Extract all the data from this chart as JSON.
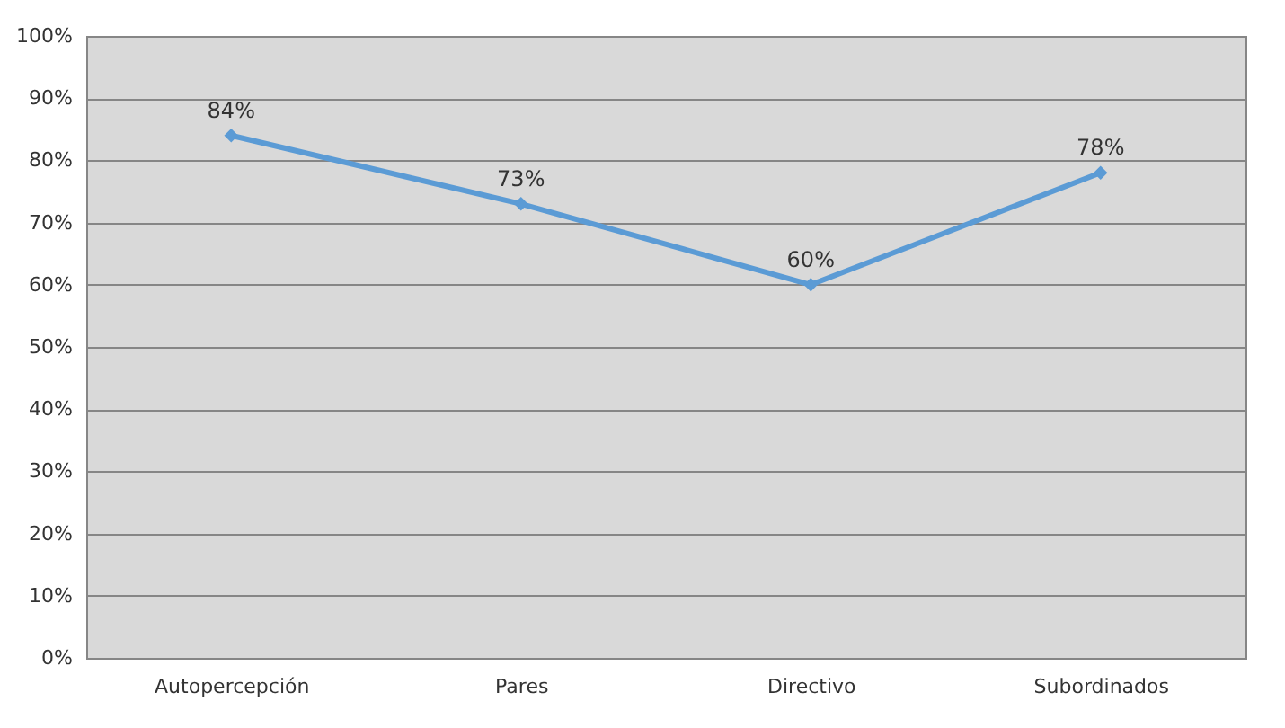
{
  "chart_data": {
    "type": "line",
    "categories": [
      "Autopercepción",
      "Pares",
      "Directivo",
      "Subordinados"
    ],
    "series": [
      {
        "color": "#5b9bd5",
        "values": [
          84,
          73,
          60,
          78
        ],
        "value_labels": [
          "84%",
          "73%",
          "60%",
          "78%"
        ]
      }
    ],
    "ylim": [
      0,
      100
    ],
    "yticks": [
      {
        "value": 0,
        "label": "0%"
      },
      {
        "value": 10,
        "label": "10%"
      },
      {
        "value": 20,
        "label": "20%"
      },
      {
        "value": 30,
        "label": "30%"
      },
      {
        "value": 40,
        "label": "40%"
      },
      {
        "value": 50,
        "label": "50%"
      },
      {
        "value": 60,
        "label": "60%"
      },
      {
        "value": 70,
        "label": "70%"
      },
      {
        "value": 80,
        "label": "80%"
      },
      {
        "value": 90,
        "label": "90%"
      },
      {
        "value": 100,
        "label": "100%"
      }
    ],
    "grid": "y",
    "marker": "diamond"
  }
}
